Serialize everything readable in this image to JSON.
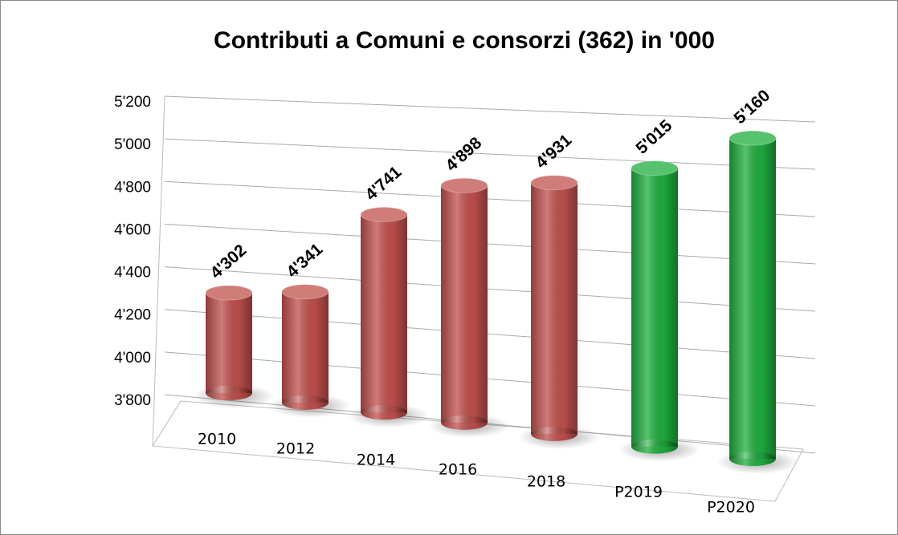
{
  "chart_data": {
    "type": "bar3d",
    "title": "Contributi a Comuni e consorzi (362) in '000",
    "categories": [
      "2010",
      "2012",
      "2014",
      "2016",
      "2018",
      "P2019",
      "P2020"
    ],
    "values": [
      4302,
      4341,
      4741,
      4898,
      4931,
      5015,
      5160
    ],
    "value_labels": [
      "4'302",
      "4'341",
      "4'741",
      "4'898",
      "4'931",
      "5'015",
      "5'160"
    ],
    "colors": [
      "#c0504d",
      "#c0504d",
      "#c0504d",
      "#c0504d",
      "#c0504d",
      "#1fae3e",
      "#1fae3e"
    ],
    "ylim": [
      3800,
      5200
    ],
    "yticks": [
      {
        "value": 3800,
        "label": "3'800"
      },
      {
        "value": 4000,
        "label": "4'000"
      },
      {
        "value": 4200,
        "label": "4'200"
      },
      {
        "value": 4400,
        "label": "4'400"
      },
      {
        "value": 4600,
        "label": "4'600"
      },
      {
        "value": 4800,
        "label": "4'800"
      },
      {
        "value": 5000,
        "label": "5'000"
      },
      {
        "value": 5200,
        "label": "5'200"
      }
    ],
    "grid": true
  }
}
